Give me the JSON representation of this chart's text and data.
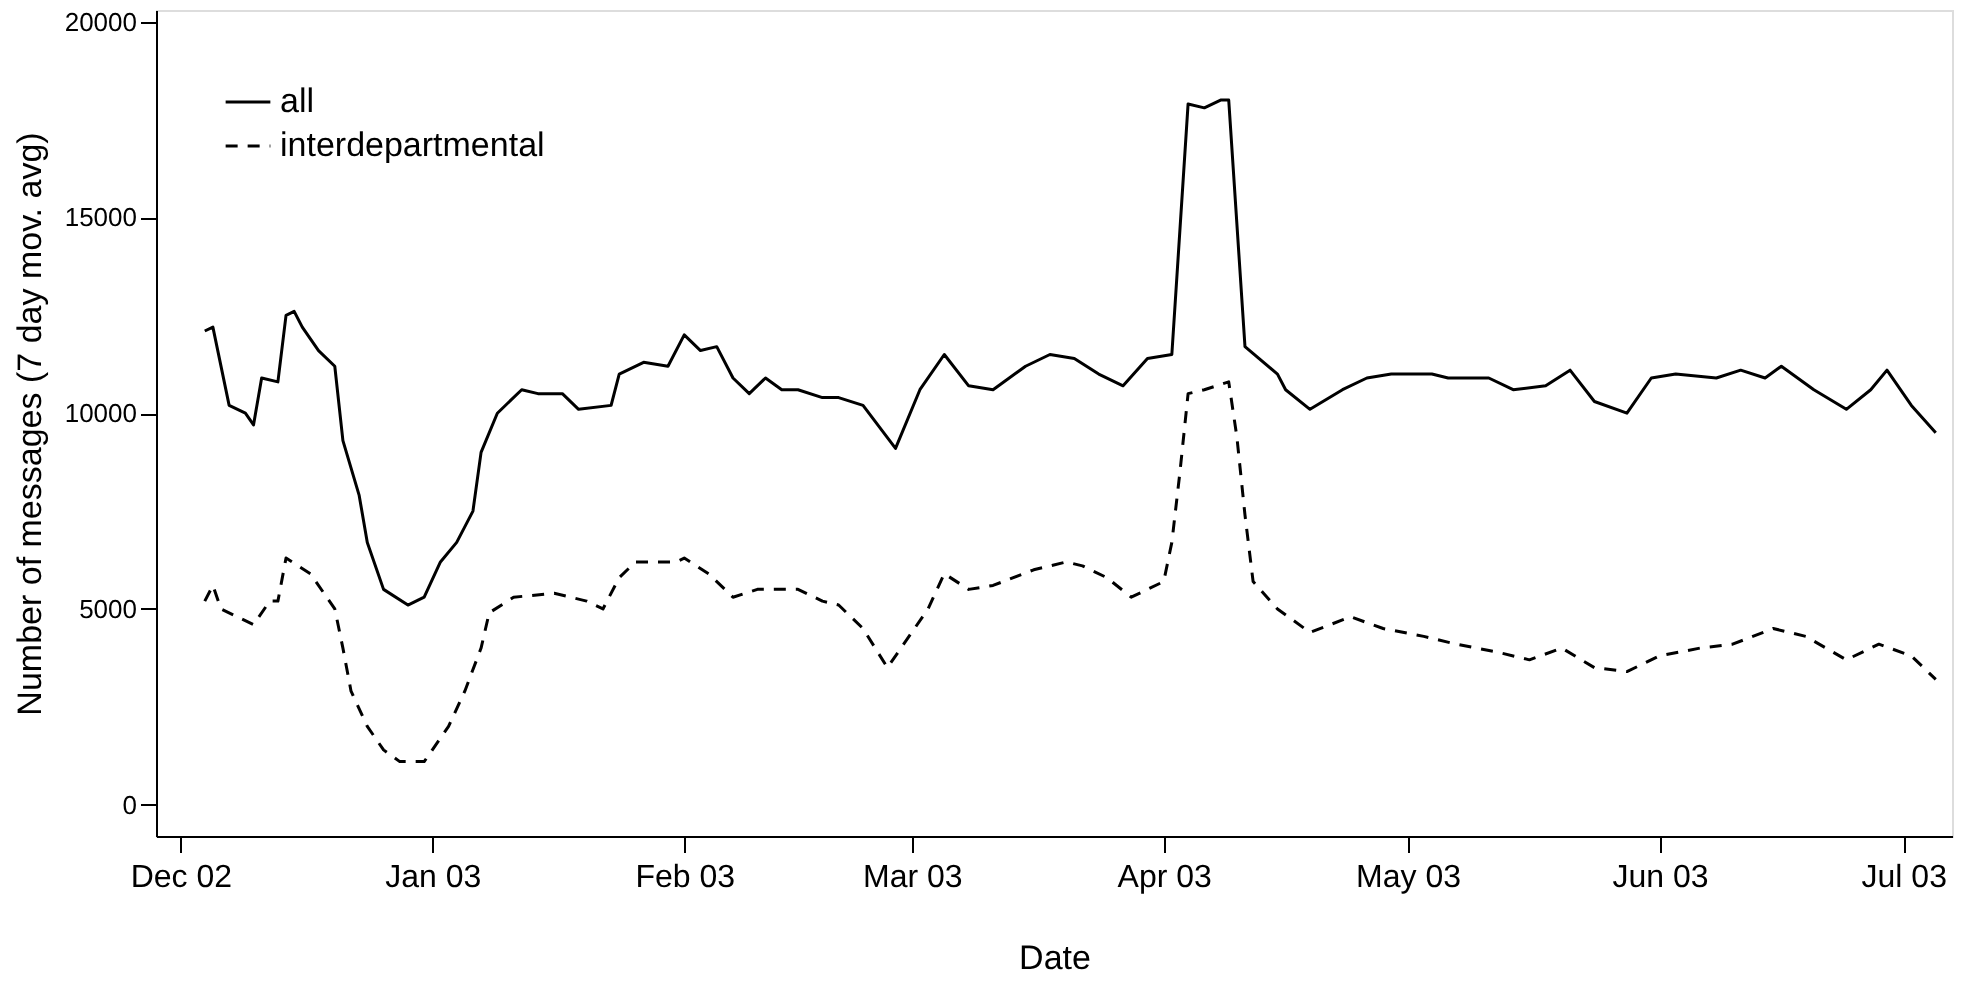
{
  "chart_data": {
    "type": "line",
    "xlabel": "Date",
    "ylabel": "Number of messages (7 day mov. avg)",
    "xlim": [
      "2002-11-28",
      "2003-07-07"
    ],
    "ylim": [
      -800,
      20300
    ],
    "xticks": [
      {
        "value": "2002-12-01",
        "label": "Dec 02"
      },
      {
        "value": "2003-01-01",
        "label": "Jan 03"
      },
      {
        "value": "2003-02-01",
        "label": "Feb 03"
      },
      {
        "value": "2003-03-01",
        "label": "Mar 03"
      },
      {
        "value": "2003-04-01",
        "label": "Apr 03"
      },
      {
        "value": "2003-05-01",
        "label": "May 03"
      },
      {
        "value": "2003-06-01",
        "label": "Jun 03"
      },
      {
        "value": "2003-07-01",
        "label": "Jul 03"
      }
    ],
    "yticks": [
      0,
      5000,
      10000,
      15000,
      20000
    ],
    "grid": false,
    "legend": "top left",
    "series": [
      {
        "name": "all",
        "color": "#000000",
        "line_style": "solid",
        "x": [
          "2002-12-04",
          "2002-12-05",
          "2002-12-07",
          "2002-12-09",
          "2002-12-10",
          "2002-12-11",
          "2002-12-13",
          "2002-12-14",
          "2002-12-15",
          "2002-12-16",
          "2002-12-18",
          "2002-12-20",
          "2002-12-21",
          "2002-12-23",
          "2002-12-24",
          "2002-12-26",
          "2002-12-29",
          "2002-12-31",
          "2003-01-02",
          "2003-01-04",
          "2003-01-06",
          "2003-01-07",
          "2003-01-09",
          "2003-01-12",
          "2003-01-14",
          "2003-01-17",
          "2003-01-19",
          "2003-01-23",
          "2003-01-24",
          "2003-01-27",
          "2003-01-30",
          "2003-02-01",
          "2003-02-03",
          "2003-02-05",
          "2003-02-07",
          "2003-02-09",
          "2003-02-11",
          "2003-02-13",
          "2003-02-15",
          "2003-02-18",
          "2003-02-20",
          "2003-02-23",
          "2003-02-27",
          "2003-03-02",
          "2003-03-05",
          "2003-03-08",
          "2003-03-11",
          "2003-03-15",
          "2003-03-18",
          "2003-03-21",
          "2003-03-24",
          "2003-03-27",
          "2003-03-30",
          "2003-04-02",
          "2003-04-04",
          "2003-04-06",
          "2003-04-08",
          "2003-04-09",
          "2003-04-11",
          "2003-04-15",
          "2003-04-16",
          "2003-04-19",
          "2003-04-23",
          "2003-04-26",
          "2003-04-29",
          "2003-05-04",
          "2003-05-06",
          "2003-05-11",
          "2003-05-14",
          "2003-05-18",
          "2003-05-21",
          "2003-05-24",
          "2003-05-28",
          "2003-05-31",
          "2003-06-03",
          "2003-06-08",
          "2003-06-11",
          "2003-06-14",
          "2003-06-16",
          "2003-06-20",
          "2003-06-24",
          "2003-06-27",
          "2003-06-29",
          "2003-07-02",
          "2003-07-05"
        ],
        "values": [
          12100,
          12200,
          10200,
          10000,
          9700,
          10900,
          10800,
          12500,
          12600,
          12200,
          11600,
          11200,
          9300,
          7900,
          6700,
          5500,
          5100,
          5300,
          6200,
          6700,
          7500,
          9000,
          10000,
          10600,
          10500,
          10500,
          10100,
          10200,
          11000,
          11300,
          11200,
          12000,
          11600,
          11700,
          10900,
          10500,
          10900,
          10600,
          10600,
          10400,
          10400,
          10200,
          9100,
          10600,
          11500,
          10700,
          10600,
          11200,
          11500,
          11400,
          11000,
          10700,
          11400,
          11500,
          17900,
          17800,
          18000,
          18000,
          11700,
          11000,
          10600,
          10100,
          10600,
          10900,
          11000,
          11000,
          10900,
          10900,
          10600,
          10700,
          11100,
          10300,
          10000,
          10900,
          11000,
          10900,
          11100,
          10900,
          11200,
          10600,
          10100,
          10600,
          11100,
          10200,
          9500
        ]
      },
      {
        "name": "interdepartmental",
        "color": "#000000",
        "line_style": "dashed",
        "x": [
          "2002-12-04",
          "2002-12-05",
          "2002-12-06",
          "2002-12-10",
          "2002-12-12",
          "2002-12-13",
          "2002-12-14",
          "2002-12-17",
          "2002-12-20",
          "2002-12-21",
          "2002-12-22",
          "2002-12-24",
          "2002-12-26",
          "2002-12-28",
          "2002-12-31",
          "2003-01-03",
          "2003-01-05",
          "2003-01-07",
          "2003-01-08",
          "2003-01-11",
          "2003-01-16",
          "2003-01-20",
          "2003-01-22",
          "2003-01-24",
          "2003-01-26",
          "2003-01-31",
          "2003-02-01",
          "2003-02-04",
          "2003-02-07",
          "2003-02-10",
          "2003-02-15",
          "2003-02-18",
          "2003-02-20",
          "2003-02-23",
          "2003-02-26",
          "2003-02-28",
          "2003-03-03",
          "2003-03-05",
          "2003-03-08",
          "2003-03-11",
          "2003-03-16",
          "2003-03-20",
          "2003-03-22",
          "2003-03-25",
          "2003-03-28",
          "2003-04-01",
          "2003-04-02",
          "2003-04-03",
          "2003-04-04",
          "2003-04-06",
          "2003-04-09",
          "2003-04-10",
          "2003-04-11",
          "2003-04-12",
          "2003-04-15",
          "2003-04-19",
          "2003-04-24",
          "2003-04-28",
          "2003-05-03",
          "2003-05-07",
          "2003-05-12",
          "2003-05-16",
          "2003-05-20",
          "2003-05-24",
          "2003-05-28",
          "2003-06-01",
          "2003-06-06",
          "2003-06-10",
          "2003-06-15",
          "2003-06-19",
          "2003-06-24",
          "2003-06-28",
          "2003-07-02",
          "2003-07-05"
        ],
        "values": [
          5200,
          5600,
          5000,
          4600,
          5200,
          5200,
          6300,
          5900,
          5000,
          4000,
          2900,
          2000,
          1400,
          1100,
          1100,
          2000,
          2900,
          4000,
          4900,
          5300,
          5400,
          5200,
          5000,
          5800,
          6200,
          6200,
          6300,
          5900,
          5300,
          5500,
          5500,
          5200,
          5100,
          4500,
          3500,
          4100,
          5000,
          5900,
          5500,
          5600,
          6000,
          6200,
          6100,
          5800,
          5300,
          5700,
          6700,
          8500,
          10500,
          10600,
          10800,
          9400,
          7400,
          5700,
          5000,
          4400,
          4800,
          4500,
          4300,
          4100,
          3900,
          3700,
          4000,
          3500,
          3400,
          3800,
          4000,
          4100,
          4500,
          4300,
          3700,
          4100,
          3800,
          3200
        ]
      }
    ]
  }
}
